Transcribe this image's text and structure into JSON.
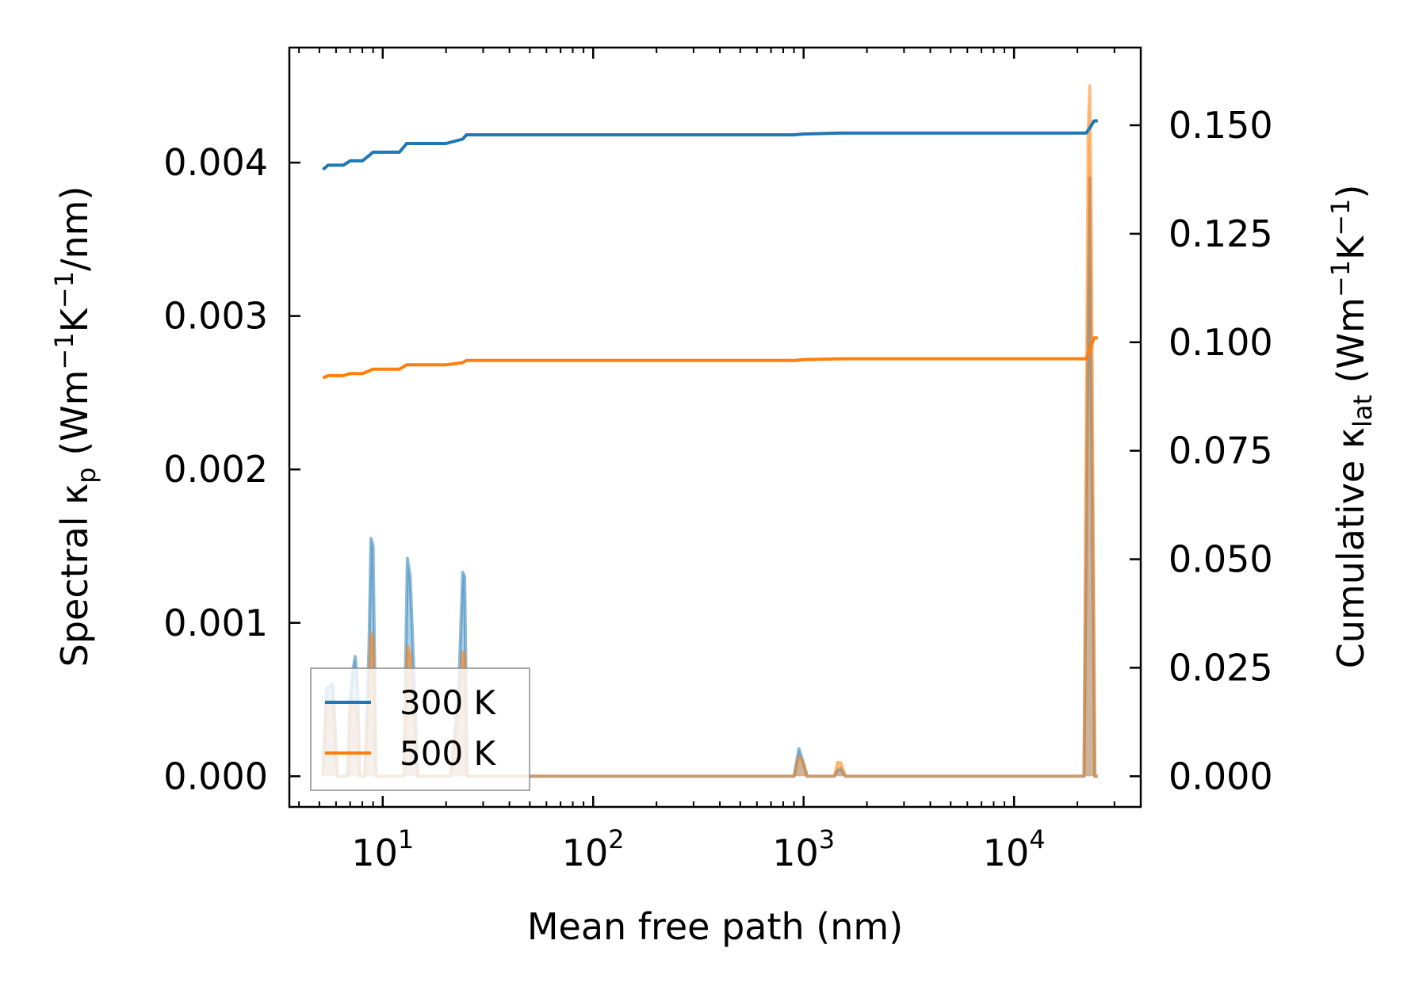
{
  "chart_data": {
    "type": "line",
    "xscale": "log",
    "xlabel": "Mean free path (nm)",
    "ylabel_left": "Spectral κp (Wm−1K−1/nm)",
    "ylabel_left_parts": {
      "pre": "Spectral κ",
      "sub": "p",
      "mid1": " (Wm",
      "sup1": "−1",
      "mid2": "K",
      "sup2": "−1",
      "post": "/nm)"
    },
    "ylabel_right": "Cumulative κlat (Wm−1K−1)",
    "ylabel_right_parts": {
      "pre": "Cumulative κ",
      "sub": "lat",
      "mid1": " (Wm",
      "sup1": "−1",
      "mid2": "K",
      "sup2": "−1",
      "post": ")"
    },
    "xlim": [
      3.6,
      40000
    ],
    "ylim_left": [
      -0.0002,
      0.00475
    ],
    "ylim_right": [
      -0.00707,
      0.1679
    ],
    "x_ticks": [
      {
        "value": 10,
        "base": "10",
        "exp": "1"
      },
      {
        "value": 100,
        "base": "10",
        "exp": "2"
      },
      {
        "value": 1000,
        "base": "10",
        "exp": "3"
      },
      {
        "value": 10000,
        "base": "10",
        "exp": "4"
      }
    ],
    "y_left_ticks": [
      {
        "value": 0,
        "label": "0.000"
      },
      {
        "value": 0.001,
        "label": "0.001"
      },
      {
        "value": 0.002,
        "label": "0.002"
      },
      {
        "value": 0.003,
        "label": "0.003"
      },
      {
        "value": 0.004,
        "label": "0.004"
      }
    ],
    "y_right_ticks": [
      {
        "value": 0,
        "label": "0.000"
      },
      {
        "value": 0.025,
        "label": "0.025"
      },
      {
        "value": 0.05,
        "label": "0.050"
      },
      {
        "value": 0.075,
        "label": "0.075"
      },
      {
        "value": 0.1,
        "label": "0.100"
      },
      {
        "value": 0.125,
        "label": "0.125"
      },
      {
        "value": 0.15,
        "label": "0.150"
      }
    ],
    "legend_position": "lower-left",
    "series": [
      {
        "name": "300 K",
        "color": "#1f77b4",
        "cumulative": {
          "x": [
            5.2,
            5.5,
            6.0,
            6.5,
            7.0,
            7.5,
            8.0,
            8.5,
            9.0,
            10.0,
            11.0,
            12.0,
            12.5,
            13.0,
            14.0,
            16.0,
            20.0,
            24.0,
            25.0,
            50.0,
            100.0,
            500.0,
            900.0,
            1000.0,
            1500.0,
            2000.0,
            10000.0,
            22000.0,
            23000.0,
            24000.0,
            25000.0
          ],
          "y": [
            0.1398,
            0.1408,
            0.1408,
            0.1408,
            0.1418,
            0.1418,
            0.1418,
            0.1428,
            0.1438,
            0.1438,
            0.1438,
            0.1438,
            0.1448,
            0.1458,
            0.1458,
            0.1458,
            0.1458,
            0.1468,
            0.1478,
            0.1478,
            0.1478,
            0.1478,
            0.1478,
            0.148,
            0.1482,
            0.1482,
            0.1482,
            0.1482,
            0.1495,
            0.151,
            0.151
          ]
        },
        "spectral": {
          "x": [
            5.2,
            5.4,
            5.5,
            5.7,
            5.8,
            6.1,
            6.4,
            6.8,
            7.0,
            7.2,
            7.4,
            7.6,
            7.8,
            8.2,
            8.6,
            8.8,
            9.0,
            9.3,
            10.2,
            11.2,
            12.6,
            13.1,
            13.5,
            14.7,
            21.0,
            23.0,
            24.0,
            24.5,
            25.2,
            27.0,
            100.0,
            850.0,
            900.0,
            950.0,
            990.0,
            1040.0,
            1400.0,
            1450.0,
            1500.0,
            1580.0,
            1650.0,
            5000.0,
            21500.0,
            22500.0,
            22900.0,
            23300.0,
            24200.0,
            25000.0
          ],
          "y": [
            0.0,
            0.00057,
            0.00058,
            0.0006,
            0.0006,
            0.0,
            0.0,
            0.0,
            0.0005,
            0.00068,
            0.00078,
            0.0006,
            0.0,
            0.0,
            0.00082,
            0.00155,
            0.0015,
            0.0,
            0.0,
            0.0,
            0.0,
            0.00142,
            0.0013,
            0.0,
            0.0,
            0.00058,
            0.00133,
            0.0013,
            0.0,
            0.0,
            0.0,
            0.0,
            0.0,
            0.00018,
            0.0001,
            0.0,
            0.0,
            4e-05,
            5e-05,
            0.0,
            0.0,
            0.0,
            0.0,
            0.003,
            0.0039,
            0.0025,
            0.0,
            0.0
          ]
        }
      },
      {
        "name": "500 K",
        "color": "#ff7f0e",
        "cumulative": {
          "x": [
            5.2,
            5.5,
            6.0,
            6.5,
            7.0,
            7.5,
            8.0,
            8.5,
            9.0,
            10.0,
            11.0,
            12.0,
            12.5,
            13.0,
            14.0,
            16.0,
            20.0,
            24.0,
            25.0,
            50.0,
            100.0,
            500.0,
            900.0,
            1000.0,
            1500.0,
            2000.0,
            10000.0,
            22000.0,
            23000.0,
            24000.0,
            25000.0
          ],
          "y": [
            0.0918,
            0.0923,
            0.0923,
            0.0923,
            0.0928,
            0.0928,
            0.0928,
            0.0933,
            0.0938,
            0.0938,
            0.0938,
            0.0938,
            0.0943,
            0.0948,
            0.0948,
            0.0948,
            0.0948,
            0.0953,
            0.0958,
            0.0958,
            0.0958,
            0.0958,
            0.0958,
            0.096,
            0.0962,
            0.0962,
            0.0962,
            0.0962,
            0.0985,
            0.101,
            0.101
          ]
        },
        "spectral": {
          "x": [
            5.2,
            5.4,
            5.5,
            5.7,
            5.8,
            6.1,
            6.4,
            6.8,
            7.0,
            7.2,
            7.4,
            7.6,
            7.8,
            8.2,
            8.6,
            8.8,
            9.0,
            9.3,
            10.2,
            11.2,
            12.6,
            13.1,
            13.5,
            14.7,
            21.0,
            23.0,
            24.0,
            24.5,
            25.2,
            27.0,
            100.0,
            850.0,
            900.0,
            950.0,
            990.0,
            1040.0,
            1400.0,
            1450.0,
            1500.0,
            1580.0,
            1650.0,
            5000.0,
            21500.0,
            22500.0,
            22900.0,
            23300.0,
            24200.0,
            25000.0
          ],
          "y": [
            0.0,
            0.00048,
            0.0005,
            0.0005,
            0.00048,
            0.0,
            0.0,
            0.0,
            0.00045,
            0.0005,
            0.00046,
            0.0004,
            0.0,
            0.0,
            0.0005,
            0.00093,
            0.0009,
            0.0,
            0.0,
            0.0,
            0.0,
            0.00085,
            0.0008,
            0.0,
            0.0,
            0.00045,
            0.00081,
            0.0008,
            0.0,
            0.0,
            0.0,
            0.0,
            0.0,
            0.00013,
            0.0001,
            0.0,
            0.0,
            9e-05,
            9e-05,
            0.0,
            0.0,
            0.0,
            0.0,
            0.0042,
            0.0045,
            0.0035,
            0.0,
            0.0
          ]
        }
      }
    ]
  }
}
